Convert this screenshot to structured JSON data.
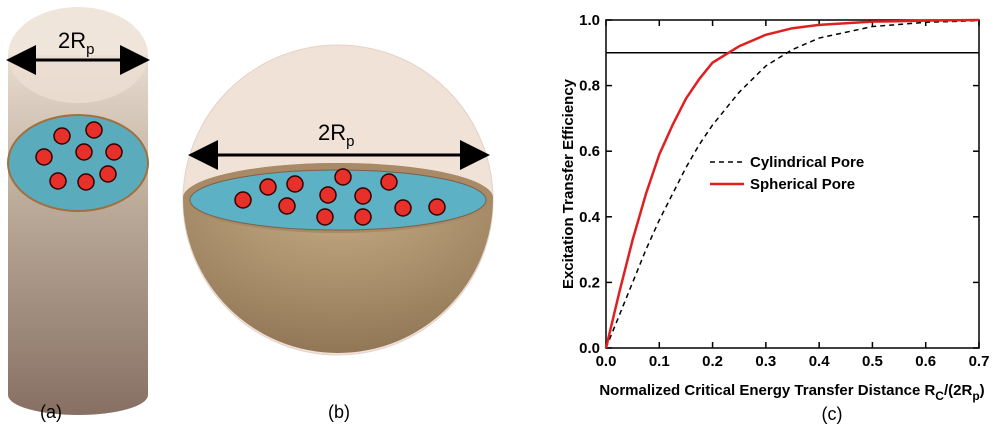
{
  "chart_data": {
    "type": "line",
    "x": [
      0,
      0.025,
      0.05,
      0.075,
      0.1,
      0.125,
      0.15,
      0.175,
      0.2,
      0.25,
      0.3,
      0.35,
      0.4,
      0.5,
      0.6,
      0.7
    ],
    "series": [
      {
        "name": "Cylindrical Pore",
        "color": "#000000",
        "dash": true,
        "values": [
          0,
          0.1,
          0.2,
          0.3,
          0.39,
          0.47,
          0.55,
          0.62,
          0.68,
          0.78,
          0.86,
          0.91,
          0.945,
          0.98,
          0.993,
          0.998
        ]
      },
      {
        "name": "Spherical Pore",
        "color": "#e02020",
        "dash": false,
        "values": [
          0,
          0.17,
          0.33,
          0.47,
          0.59,
          0.68,
          0.76,
          0.82,
          0.87,
          0.92,
          0.955,
          0.975,
          0.985,
          0.995,
          0.998,
          1.0
        ]
      }
    ],
    "reference_line": 0.9,
    "ylabel": "Excitation Transfer Efficiency",
    "xlabel": [
      "Normalized Critical Energy Transfer Distance R",
      "C",
      "/(2R",
      "p",
      ")"
    ],
    "xlim": [
      0,
      0.7
    ],
    "ylim": [
      0,
      1.0
    ],
    "xticks": [
      {
        "value": 0,
        "label": "0.0"
      },
      {
        "value": 0.1,
        "label": "0.1"
      },
      {
        "value": 0.2,
        "label": "0.2"
      },
      {
        "value": 0.3,
        "label": "0.3"
      },
      {
        "value": 0.4,
        "label": "0.4"
      },
      {
        "value": 0.5,
        "label": "0.5"
      },
      {
        "value": 0.6,
        "label": "0.6"
      },
      {
        "value": 0.7,
        "label": "0.7"
      }
    ],
    "yticks": [
      {
        "value": 0,
        "label": "0.0"
      },
      {
        "value": 0.2,
        "label": "0.2"
      },
      {
        "value": 0.4,
        "label": "0.4"
      },
      {
        "value": 0.6,
        "label": "0.6"
      },
      {
        "value": 0.8,
        "label": "0.8"
      },
      {
        "value": 1.0,
        "label": "1.0"
      }
    ],
    "legend": "center-right",
    "grid": false
  },
  "diagrams": {
    "cylinder_label": [
      "2R",
      "p"
    ],
    "sphere_label": [
      "2R",
      "p"
    ],
    "panel_a": "(a)",
    "panel_b": "(b)",
    "panel_c": "(c)"
  }
}
